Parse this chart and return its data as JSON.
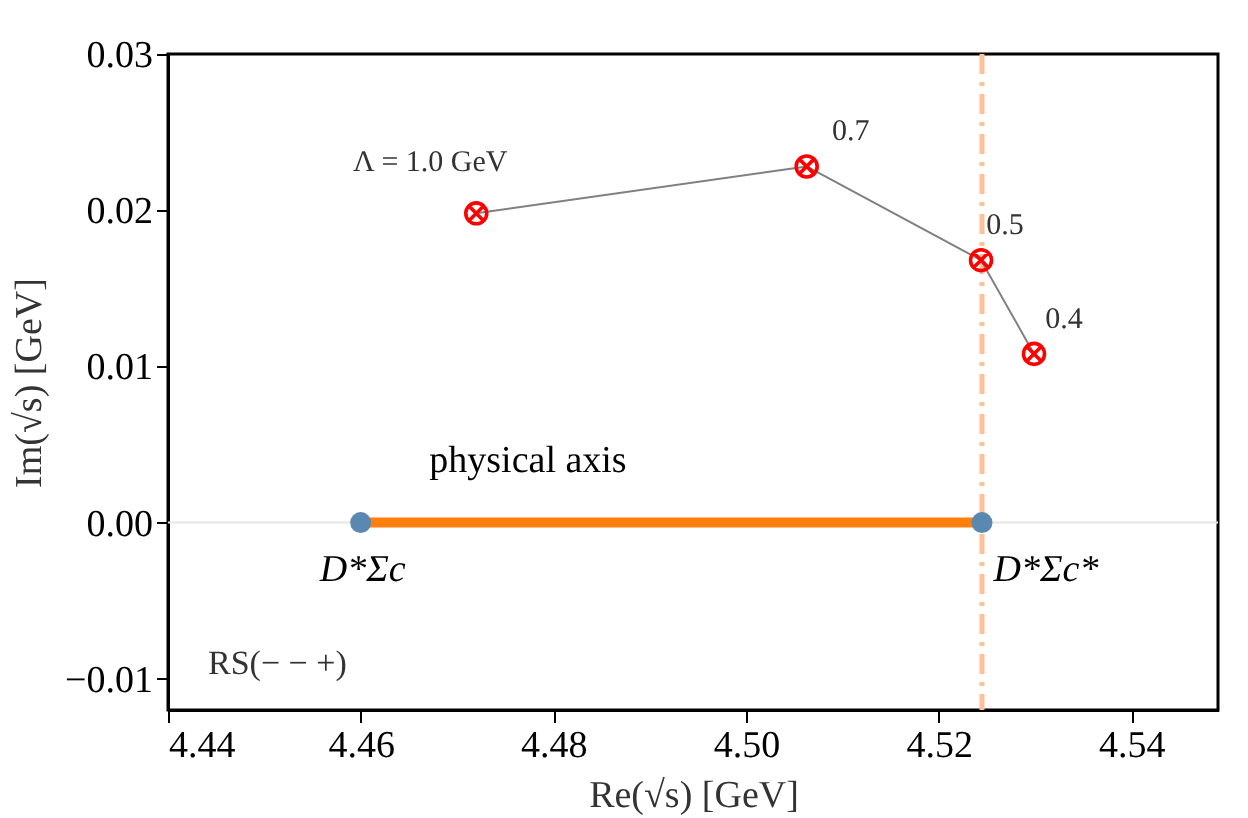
{
  "chart_data": {
    "type": "scatter",
    "xlabel": "Re(√s) [GeV]",
    "ylabel": "Im(√s) [GeV]",
    "xlim": [
      4.44,
      4.549
    ],
    "ylim": [
      -0.012,
      0.03
    ],
    "xticks": [
      4.44,
      4.46,
      4.48,
      {
        "value": 4.5,
        "label": "4.50"
      },
      4.52,
      4.54
    ],
    "yticks": [
      -0.01,
      {
        "value": 0,
        "label": "0.00"
      },
      0.01,
      0.02,
      0.03
    ],
    "grid": false,
    "series": [
      {
        "type": "line",
        "color": "#808080",
        "x": [
          4.5299,
          4.5244,
          4.5063,
          4.472
        ],
        "values": [
          0.0108,
          0.0168,
          0.0228,
          0.0198
        ]
      },
      {
        "color": "#ff0000",
        "marker": "cross",
        "x": [
          4.472,
          4.5063,
          4.5244,
          4.5299
        ],
        "values": [
          0.0198,
          0.0228,
          0.0168,
          0.0108
        ]
      },
      {
        "type": "line",
        "color": "#ff7f0e",
        "x": [
          4.46,
          4.5245
        ],
        "values": [
          0,
          0
        ]
      },
      {
        "color": "#5b88b0",
        "marker": "circle",
        "x": [
          4.46,
          4.5245
        ],
        "values": [
          0,
          0
        ]
      }
    ],
    "ref_lines": [
      {
        "axis": "x",
        "value": 4.5245,
        "color": "#ffc09a",
        "line_style": "dashdot"
      },
      {
        "axis": "y",
        "value": 0,
        "color": "#e6e6e6",
        "line_style": "solid"
      }
    ],
    "annotations": [
      {
        "text": "Λ = 1.0 GeV",
        "x": 4.472,
        "y": 0.0198
      },
      {
        "text": "0.7",
        "x": 4.5063,
        "y": 0.0228
      },
      {
        "text": "0.5",
        "x": 4.5244,
        "y": 0.0168
      },
      {
        "text": "0.4",
        "x": 4.5299,
        "y": 0.0108
      },
      "physical axis",
      {
        "text": "D*Σc",
        "x": 4.46,
        "y": 0
      },
      {
        "text": "D*Σc*",
        "x": 4.5245,
        "y": 0
      },
      "RS(− − +)"
    ]
  }
}
